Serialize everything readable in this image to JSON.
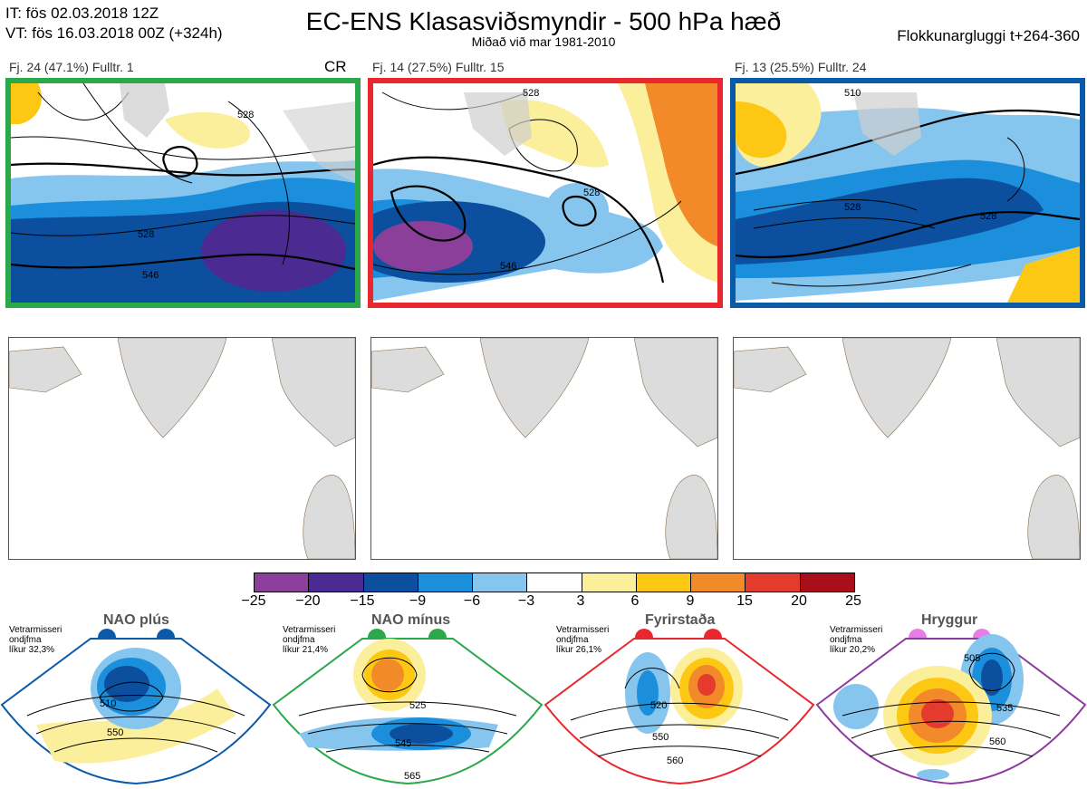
{
  "header": {
    "init_time": "IT: fös 02.03.2018 12Z",
    "valid_time": "VT: fös 16.03.2018 00Z  (+324h)",
    "title": "EC-ENS Klasasviðsmyndir - 500 hPa hæð",
    "subtitle": "Miðað við mar 1981-2010",
    "window": "Flokkunargluggi t+264-360"
  },
  "clusters": [
    {
      "label": "Fj. 24 (47.1%)   Fulltr. 1",
      "flag": "CR",
      "border_color": "#2aa84a",
      "contour_labels": [
        "528",
        "528",
        "546"
      ]
    },
    {
      "label": "Fj. 14 (27.5%)   Fulltr. 15",
      "flag": "",
      "border_color": "#e8282e",
      "contour_labels": [
        "528",
        "528",
        "546"
      ]
    },
    {
      "label": "Fj. 13 (25.5%)   Fulltr. 24",
      "flag": "",
      "border_color": "#0a5aa8",
      "contour_labels": [
        "510",
        "528",
        "528"
      ]
    }
  ],
  "colorbar": {
    "ticks": [
      "−25",
      "−20",
      "−15",
      "−9",
      "−6",
      "−3",
      "3",
      "6",
      "9",
      "15",
      "20",
      "25"
    ],
    "colors": [
      "#8b3f9a",
      "#4b2a92",
      "#0b4f9e",
      "#1c8fdc",
      "#86c5ee",
      "#ffffff",
      "#fcef9c",
      "#fcc814",
      "#f28a2a",
      "#e53a2e",
      "#a80f1a"
    ]
  },
  "regimes": [
    {
      "title": "NAO plús",
      "note": [
        "Vetrarmisseri",
        "ondjfma",
        "líkur 32,3%"
      ],
      "color": "#0a5aa8",
      "contour_labels": [
        "510",
        "550"
      ]
    },
    {
      "title": "NAO mínus",
      "note": [
        "Vetrarmisseri",
        "ondjfma",
        "líkur 21,4%"
      ],
      "color": "#2aa84a",
      "contour_labels": [
        "525",
        "545",
        "565"
      ]
    },
    {
      "title": "Fyrirstaða",
      "note": [
        "Vetrarmisseri",
        "ondjfma",
        "líkur 26,1%"
      ],
      "color": "#e8282e",
      "contour_labels": [
        "520",
        "550",
        "560"
      ]
    },
    {
      "title": "Hryggur",
      "note": [
        "Vetrarmisseri",
        "ondjfma",
        "líkur 20,2%"
      ],
      "color": "#8e3aa0",
      "contour_labels": [
        "505",
        "535",
        "560"
      ]
    }
  ]
}
